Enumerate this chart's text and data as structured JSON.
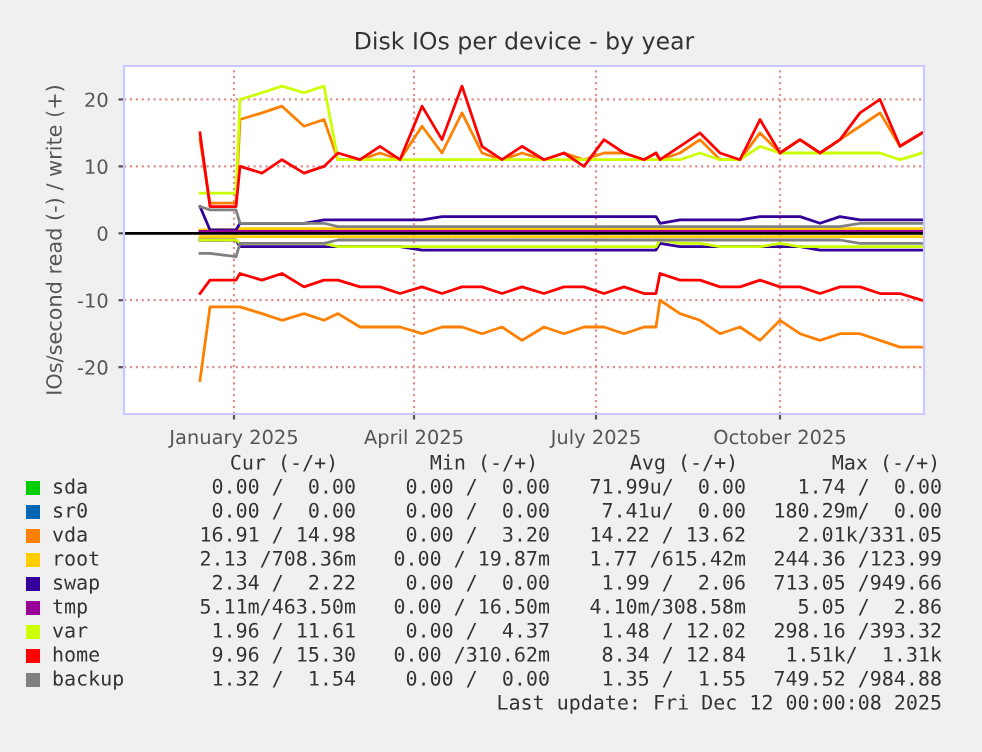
{
  "chart_data": {
    "type": "line",
    "title": "Disk IOs per device - by year",
    "ylabel": "IOs/second read (-) / write (+)",
    "x": [
      "2024-12-15",
      "2024-12-20",
      "2025-01-02",
      "2025-01-04",
      "2025-01-15",
      "2025-01-25",
      "2025-02-05",
      "2025-02-15",
      "2025-02-22",
      "2025-03-05",
      "2025-03-15",
      "2025-03-25",
      "2025-04-05",
      "2025-04-15",
      "2025-04-25",
      "2025-05-05",
      "2025-05-15",
      "2025-05-25",
      "2025-06-05",
      "2025-06-15",
      "2025-06-25",
      "2025-07-05",
      "2025-07-15",
      "2025-07-25",
      "2025-07-31",
      "2025-08-02",
      "2025-08-12",
      "2025-08-22",
      "2025-09-01",
      "2025-09-11",
      "2025-09-21",
      "2025-10-01",
      "2025-10-11",
      "2025-10-21",
      "2025-10-31",
      "2025-11-10",
      "2025-11-20",
      "2025-11-30",
      "2025-12-11"
    ],
    "xlim": [
      "2024-11-07",
      "2025-12-12"
    ],
    "xticks": [
      {
        "value": "2025-01-01",
        "label": "January 2025"
      },
      {
        "value": "2025-04-01",
        "label": "April 2025"
      },
      {
        "value": "2025-07-01",
        "label": "July 2025"
      },
      {
        "value": "2025-10-01",
        "label": "October 2025"
      }
    ],
    "ylim": [
      -27,
      25
    ],
    "yticks": [
      -20,
      -10,
      0,
      10,
      20
    ],
    "grid": true,
    "legend": "bottom",
    "ref_lines": [
      {
        "axis": "y",
        "value": 0,
        "color": "#000000"
      }
    ],
    "series": [
      {
        "name": "sda",
        "color": "#00cc00",
        "values": [
          null,
          null,
          null,
          null,
          null,
          null,
          null,
          null,
          null,
          null,
          null,
          null,
          null,
          null,
          null,
          null,
          null,
          null,
          null,
          null,
          null,
          null,
          null,
          null,
          null,
          null,
          null,
          null,
          null,
          null,
          null,
          null,
          null,
          null,
          null,
          null,
          null,
          null,
          null
        ]
      },
      {
        "name": "sr0",
        "color": "#0066b3",
        "values": [
          null,
          null,
          null,
          null,
          null,
          null,
          null,
          null,
          null,
          null,
          null,
          null,
          null,
          null,
          null,
          null,
          null,
          null,
          null,
          null,
          null,
          null,
          null,
          null,
          null,
          null,
          null,
          null,
          null,
          null,
          null,
          null,
          null,
          null,
          null,
          null,
          null,
          null,
          null
        ]
      },
      {
        "name": "vda",
        "color": "#ff8000",
        "values": [
          14,
          4.5,
          4.5,
          17,
          18,
          19,
          16,
          17,
          11,
          11,
          12,
          11,
          16,
          12,
          18,
          12,
          11,
          12,
          11,
          12,
          11,
          12,
          12,
          11,
          12,
          11,
          12,
          14,
          11,
          11,
          15,
          12,
          14,
          12,
          14,
          16,
          18,
          13,
          15
        ]
      },
      {
        "color": "#ff8000",
        "values": [
          -22,
          -11,
          -11,
          -11,
          -12,
          -13,
          -12,
          -13,
          -12,
          -14,
          -14,
          -14,
          -15,
          -14,
          -14,
          -15,
          -14,
          -16,
          -14,
          -15,
          -14,
          -14,
          -15,
          -14,
          -14,
          -10,
          -12,
          -13,
          -15,
          -14,
          -16,
          -13,
          -15,
          -16,
          -15,
          -15,
          -16,
          -17,
          -17
        ]
      },
      {
        "name": "root",
        "color": "#ffcc00",
        "values": [
          0.5,
          0.5,
          0.5,
          0.7,
          0.7,
          0.7,
          0.7,
          0.7,
          0.7,
          0.7,
          0.7,
          0.7,
          0.7,
          0.7,
          0.7,
          0.7,
          0.7,
          0.7,
          0.7,
          0.7,
          0.7,
          0.7,
          0.7,
          0.7,
          0.7,
          0.7,
          0.7,
          0.7,
          0.7,
          0.7,
          0.7,
          0.7,
          0.7,
          0.7,
          0.7,
          0.7,
          0.7,
          0.7,
          0.7
        ]
      },
      {
        "color": "#ffcc00",
        "values": [
          -0.5,
          -0.5,
          -0.5,
          -0.5,
          -0.5,
          -0.5,
          -0.5,
          -0.5,
          -0.5,
          -0.5,
          -0.5,
          -0.5,
          -0.5,
          -0.5,
          -0.5,
          -0.5,
          -0.5,
          -0.5,
          -0.5,
          -0.5,
          -0.5,
          -0.5,
          -0.5,
          -0.5,
          -0.5,
          -0.5,
          -0.5,
          -0.5,
          -0.5,
          -0.5,
          -0.5,
          -0.5,
          -0.5,
          -0.5,
          -0.5,
          -0.5,
          -0.5,
          -0.5,
          -0.5
        ]
      },
      {
        "name": "swap",
        "color": "#330099",
        "values": [
          4,
          0.5,
          0.5,
          1.5,
          1.5,
          1.5,
          1.5,
          2,
          2,
          2,
          2,
          2,
          2,
          2.5,
          2.5,
          2.5,
          2.5,
          2.5,
          2.5,
          2.5,
          2.5,
          2.5,
          2.5,
          2.5,
          2.5,
          1.5,
          2,
          2,
          2,
          2,
          2.5,
          2.5,
          2.5,
          1.5,
          2.5,
          2,
          2,
          2,
          2
        ]
      },
      {
        "color": "#330099",
        "values": [
          -1,
          -1,
          -1,
          -2,
          -2,
          -2,
          -2,
          -2,
          -2,
          -2,
          -2,
          -2,
          -2.5,
          -2.5,
          -2.5,
          -2.5,
          -2.5,
          -2.5,
          -2.5,
          -2.5,
          -2.5,
          -2.5,
          -2.5,
          -2.5,
          -2.5,
          -1.5,
          -2,
          -2,
          -2,
          -2,
          -2,
          -2,
          -2,
          -2.5,
          -2.5,
          -2.5,
          -2.5,
          -2.5,
          -2.5
        ]
      },
      {
        "name": "tmp",
        "color": "#990099",
        "values": [
          0.3,
          0.3,
          0.3,
          0.3,
          0.3,
          0.3,
          0.3,
          0.3,
          0.3,
          0.3,
          0.3,
          0.3,
          0.3,
          0.3,
          0.3,
          0.3,
          0.3,
          0.3,
          0.3,
          0.3,
          0.3,
          0.3,
          0.3,
          0.3,
          0.3,
          0.3,
          0.3,
          0.3,
          0.3,
          0.3,
          0.3,
          0.3,
          0.3,
          0.3,
          0.3,
          0.3,
          0.3,
          0.3,
          0.3
        ]
      },
      {
        "name": "var",
        "color": "#ccff00",
        "values": [
          6,
          6,
          6,
          20,
          21,
          22,
          21,
          22,
          11,
          11,
          11,
          11,
          11,
          11,
          11,
          11,
          11,
          11,
          11,
          11,
          11,
          11,
          11,
          11,
          11,
          11,
          11,
          12,
          11,
          11,
          13,
          12,
          12,
          12,
          12,
          12,
          12,
          11,
          12
        ]
      },
      {
        "color": "#ccff00",
        "values": [
          -1,
          -1,
          -1,
          -1.5,
          -1.5,
          -1.5,
          -1.5,
          -1.5,
          -2,
          -2,
          -2,
          -2,
          -2,
          -2,
          -2,
          -2,
          -2,
          -2,
          -2,
          -2,
          -2,
          -2,
          -2,
          -2,
          -2,
          -1,
          -1.5,
          -1.5,
          -2,
          -2,
          -2,
          -1.5,
          -2,
          -2,
          -2,
          -2,
          -2,
          -2,
          -2
        ]
      },
      {
        "name": "home",
        "color": "#ff0000",
        "values": [
          15,
          4,
          4,
          10,
          9,
          11,
          9,
          10,
          12,
          11,
          13,
          11,
          19,
          14,
          22,
          13,
          11,
          13,
          11,
          12,
          10,
          14,
          12,
          11,
          12,
          11,
          13,
          15,
          12,
          11,
          17,
          12,
          14,
          12,
          14,
          18,
          20,
          13,
          15
        ]
      },
      {
        "color": "#ff0000",
        "values": [
          -9,
          -7,
          -7,
          -6,
          -7,
          -6,
          -8,
          -7,
          -7,
          -8,
          -8,
          -9,
          -8,
          -9,
          -8,
          -8,
          -9,
          -8,
          -9,
          -8,
          -8,
          -9,
          -8,
          -9,
          -9,
          -6,
          -7,
          -7,
          -8,
          -8,
          -7,
          -8,
          -8,
          -9,
          -8,
          -8,
          -9,
          -9,
          -10
        ]
      },
      {
        "name": "backup",
        "color": "#808080",
        "values": [
          4,
          3.5,
          3.5,
          1.5,
          1.5,
          1.5,
          1.5,
          1.5,
          1,
          1,
          1,
          1,
          1,
          1,
          1,
          1,
          1,
          1,
          1,
          1,
          1,
          1,
          1,
          1,
          1,
          1,
          1,
          1,
          1,
          1,
          1,
          1,
          1,
          1,
          1,
          1.5,
          1.5,
          1.5,
          1.5
        ]
      },
      {
        "color": "#808080",
        "values": [
          -3,
          -3,
          -3.5,
          -1.5,
          -1.5,
          -1.5,
          -1.5,
          -1.5,
          -1,
          -1,
          -1,
          -1,
          -1,
          -1,
          -1,
          -1,
          -1,
          -1,
          -1,
          -1,
          -1,
          -1,
          -1,
          -1,
          -1,
          -1,
          -1,
          -1,
          -1,
          -1,
          -1,
          -1,
          -1,
          -1,
          -1,
          -1.5,
          -1.5,
          -1.5,
          -1.5
        ]
      }
    ],
    "annotations": [
      "Cur (-/+)",
      "Min (-/+)",
      "Avg (-/+)",
      "Max (-/+)",
      "0.00 /  0.00",
      "0.00 /  0.00",
      "71.99u/  0.00",
      "1.74 /  0.00",
      "0.00 /  0.00",
      "0.00 /  0.00",
      "7.41u/  0.00",
      "180.29m/  0.00",
      "16.91 / 14.98",
      "0.00 /  3.20",
      "14.22 / 13.62",
      "2.01k/331.05",
      "2.13 /708.36m",
      "0.00 / 19.87m",
      "1.77 /615.42m",
      "244.36 /123.99",
      "2.34 /  2.22",
      "0.00 /  0.00",
      "1.99 /  2.06",
      "713.05 /949.66",
      "5.11m/463.50m",
      "0.00 / 16.50m",
      "4.10m/308.58m",
      "5.05 /  2.86",
      "1.96 / 11.61",
      "0.00 /  4.37",
      "1.48 / 12.02",
      "298.16 /393.32",
      "9.96 / 15.30",
      "0.00 /310.62m",
      "8.34 / 12.84",
      "1.51k/  1.31k",
      "1.32 /  1.54",
      "0.00 /  0.00",
      "1.35 /  1.55",
      "749.52 /984.88",
      "Last update: Fri Dec 12 00:00:08 2025"
    ]
  }
}
